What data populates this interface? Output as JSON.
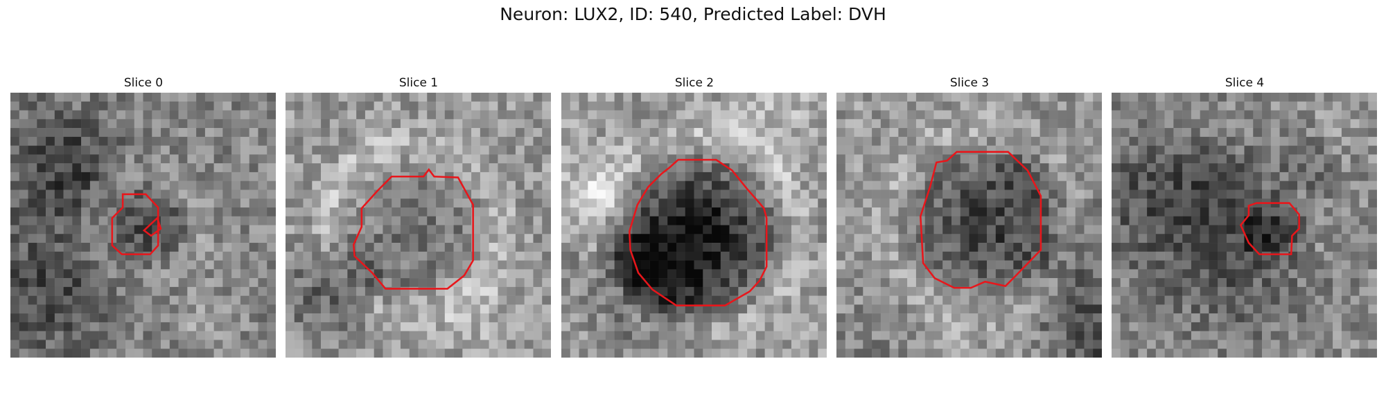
{
  "figure": {
    "title": "Neuron: LUX2, ID: 540, Predicted Label: DVH"
  },
  "colors": {
    "contour": "#e8161b",
    "background": "#ffffff"
  },
  "slices": [
    {
      "title": "Slice 0",
      "seed": 11,
      "base": 0.52,
      "center": [
        5,
        5
      ],
      "darkR": 0.16,
      "darkDepth": 0.18,
      "ring": 0.1
    },
    {
      "title": "Slice 1",
      "seed": 23,
      "base": 0.6,
      "center": [
        5,
        5
      ],
      "darkR": 0.26,
      "darkDepth": 0.32,
      "ring": 0.14
    },
    {
      "title": "Slice 2",
      "seed": 37,
      "base": 0.62,
      "center": [
        5,
        5
      ],
      "darkR": 0.3,
      "darkDepth": 0.48,
      "ring": 0.18
    },
    {
      "title": "Slice 3",
      "seed": 41,
      "base": 0.6,
      "center": [
        5,
        5
      ],
      "darkR": 0.28,
      "darkDepth": 0.3,
      "ring": 0.14
    },
    {
      "title": "Slice 4",
      "seed": 53,
      "base": 0.55,
      "center": [
        5,
        5
      ],
      "darkR": 0.14,
      "darkDepth": 0.16,
      "ring": 0.08
    }
  ]
}
